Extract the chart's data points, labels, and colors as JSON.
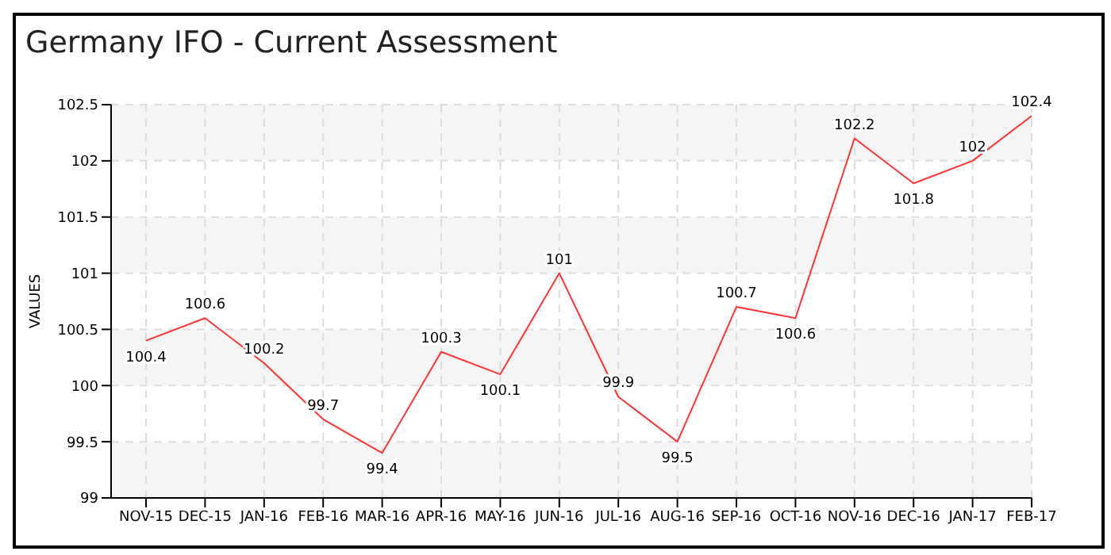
{
  "chart_data": {
    "type": "line",
    "title": "Germany IFO - Current Assessment",
    "ylabel": "VALUES",
    "categories": [
      "NOV-15",
      "DEC-15",
      "JAN-16",
      "FEB-16",
      "MAR-16",
      "APR-16",
      "MAY-16",
      "JUN-16",
      "JUL-16",
      "AUG-16",
      "SEP-16",
      "OCT-16",
      "NOV-16",
      "DEC-16",
      "JAN-17",
      "FEB-17"
    ],
    "series": [
      {
        "color": "#ff3333",
        "values": [
          100.4,
          100.6,
          100.2,
          99.7,
          99.4,
          100.3,
          100.1,
          101,
          99.9,
          99.5,
          100.7,
          100.6,
          102.2,
          101.8,
          102,
          102.4
        ]
      }
    ],
    "ylim": [
      99,
      102.5
    ],
    "yticks": [
      99,
      99.5,
      100,
      100.5,
      101,
      101.5,
      102,
      102.5
    ],
    "grid": true,
    "data_labels": true,
    "marker": "none",
    "line_style": "solid"
  }
}
